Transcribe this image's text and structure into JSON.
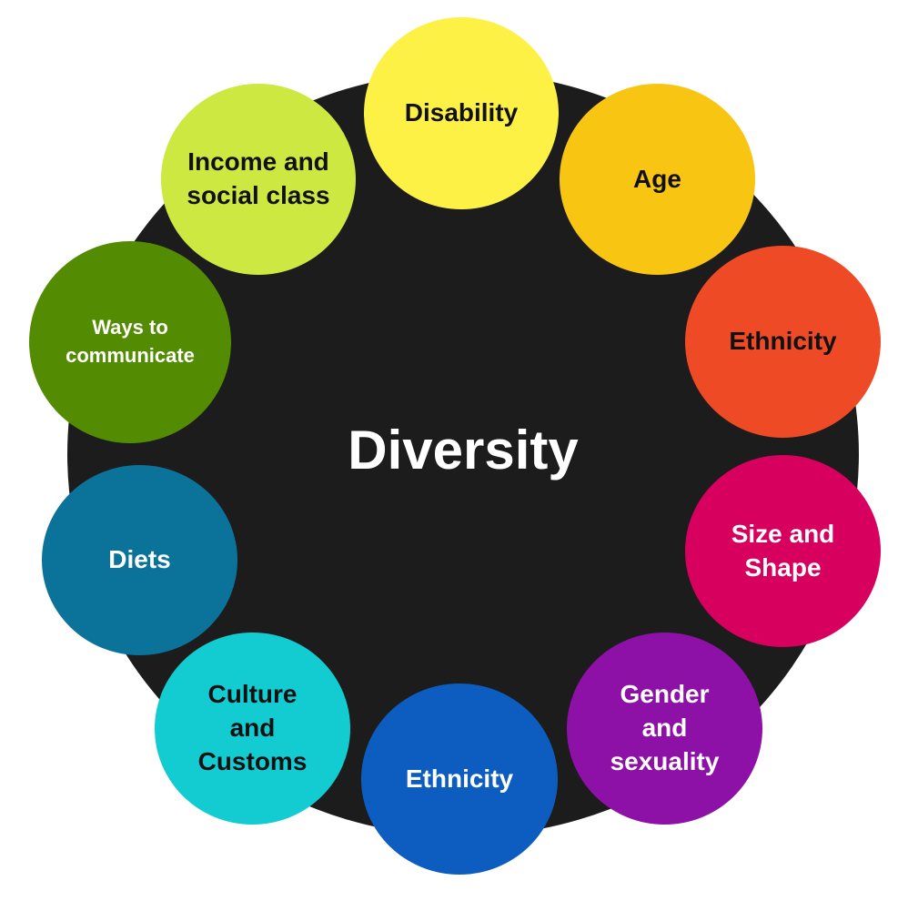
{
  "diagram": {
    "center_label": "Diversity",
    "colors": {
      "hub": "#1c1c1c",
      "center_text": "#ffffff"
    },
    "nodes": [
      {
        "label": "Disability",
        "fill": "#fdf145",
        "text_color": "#111111"
      },
      {
        "label": "Age",
        "fill": "#f8c512",
        "text_color": "#111111"
      },
      {
        "label": "Ethnicity",
        "fill": "#ef4a26",
        "text_color": "#111111"
      },
      {
        "label": "Size and Shape",
        "fill": "#d8005f",
        "text_color": "#ffffff"
      },
      {
        "label": "Gender and sexuality",
        "fill": "#8d11a6",
        "text_color": "#ffffff"
      },
      {
        "label": "Ethnicity",
        "fill": "#0c5dbf",
        "text_color": "#ffffff"
      },
      {
        "label": "Culture and Customs",
        "fill": "#13ccd2",
        "text_color": "#111111"
      },
      {
        "label": "Diets",
        "fill": "#0b7399",
        "text_color": "#ffffff"
      },
      {
        "label": "Ways to communicate",
        "fill": "#538c03",
        "text_color": "#ffffff"
      },
      {
        "label": "Income and social class",
        "fill": "#cde840",
        "text_color": "#111111"
      }
    ]
  }
}
